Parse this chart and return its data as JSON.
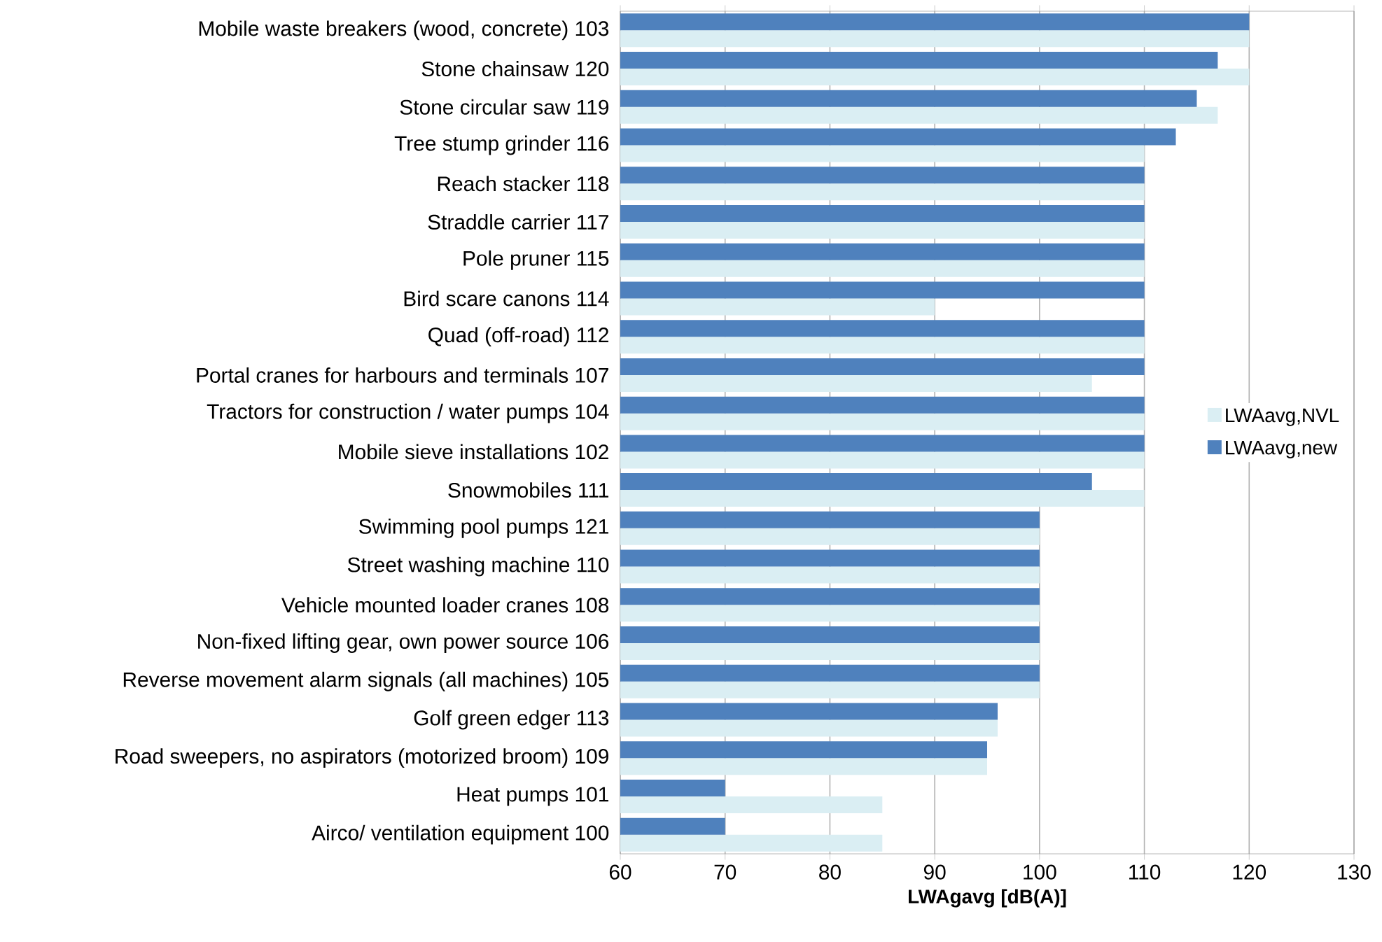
{
  "chart_data": {
    "type": "bar",
    "orientation": "horizontal",
    "xlabel": "LWAgavg [dB(A)]",
    "categories": [
      "Mobile waste breakers (wood, concrete) 103",
      "Stone chainsaw 120",
      "Stone circular saw 119",
      "Tree stump grinder 116",
      "Reach stacker 118",
      "Straddle carrier 117",
      "Pole pruner 115",
      "Bird scare canons 114",
      "Quad (off-road) 112",
      "Portal cranes for harbours and terminals 107",
      "Tractors for construction / water pumps 104",
      "Mobile sieve installations 102",
      "Snowmobiles 111",
      "Swimming pool pumps 121",
      "Street washing machine 110",
      "Vehicle mounted loader cranes 108",
      "Non-fixed lifting gear, own power source 106",
      "Reverse movement alarm signals (all machines) 105",
      "Golf green edger 113",
      "Road sweepers, no aspirators (motorized broom) 109",
      "Heat pumps  101",
      "Airco/ ventilation equipment  100"
    ],
    "series": [
      {
        "name": "LWAavg,NVL",
        "color": "#daeef3",
        "values": [
          120,
          120,
          117,
          110,
          110,
          110,
          110,
          90,
          110,
          105,
          110,
          110,
          110,
          100,
          100,
          100,
          100,
          100,
          96,
          95,
          85,
          85
        ]
      },
      {
        "name": "LWAavg,new",
        "color": "#4f81bd",
        "values": [
          120,
          117,
          115,
          113,
          110,
          110,
          110,
          110,
          110,
          110,
          110,
          110,
          105,
          100,
          100,
          100,
          100,
          100,
          96,
          95,
          70,
          70
        ]
      }
    ],
    "xlim": [
      60,
      130
    ],
    "xticks": [
      60,
      70,
      80,
      90,
      100,
      110,
      120,
      130
    ],
    "grid": "x",
    "legend": "right"
  }
}
